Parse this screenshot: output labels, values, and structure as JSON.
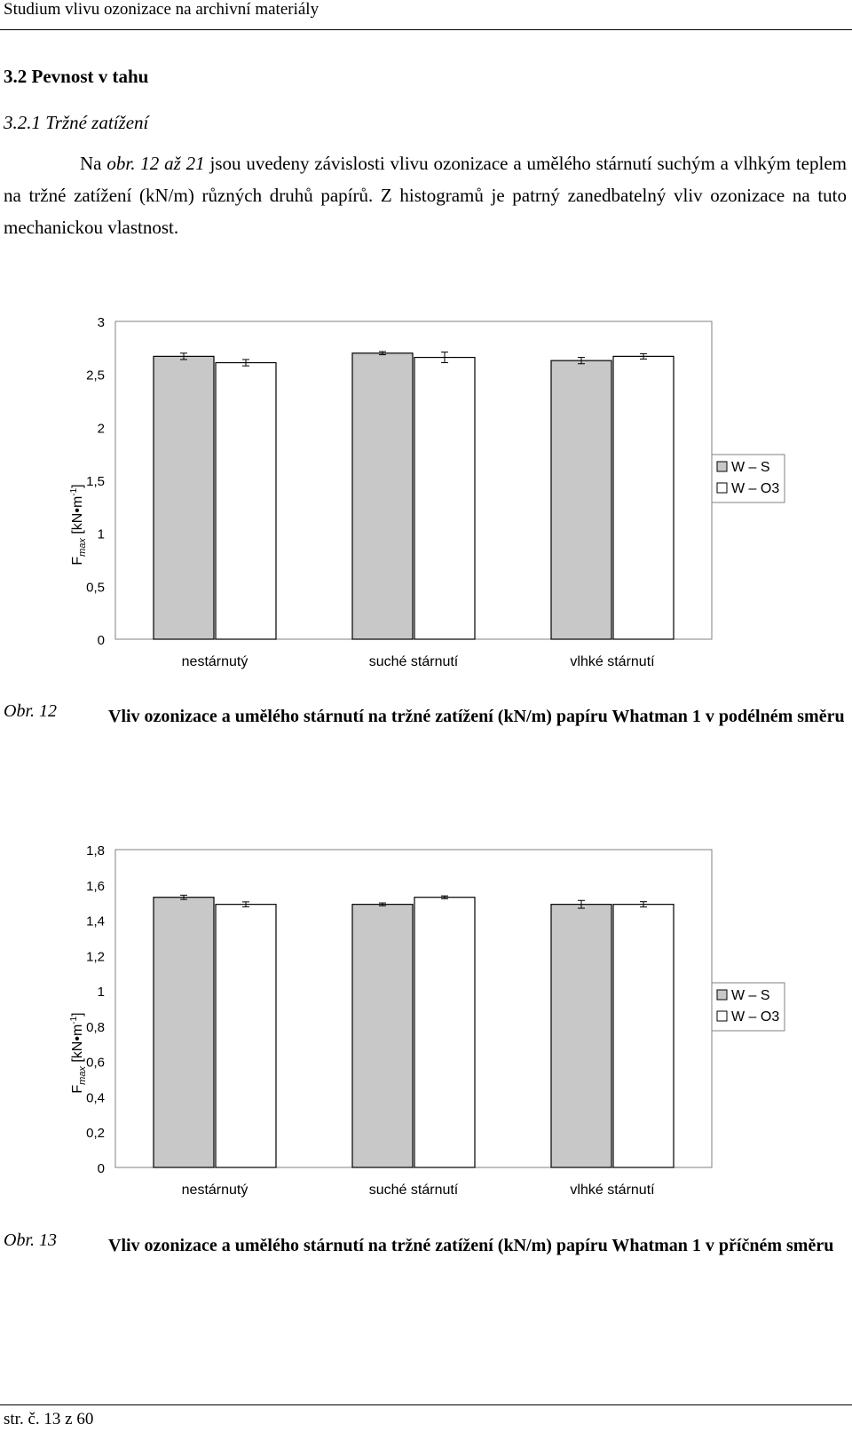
{
  "header": {
    "title": "Studium vlivu ozonizace na archivní materiály"
  },
  "section": {
    "heading": "3.2 Pevnost v tahu",
    "subheading": "3.2.1 Tržné zatížení",
    "paragraph_prefix": "Na ",
    "paragraph_italic": "obr. 12 až 21",
    "paragraph_rest": " jsou uvedeny závislosti vlivu ozonizace a umělého stárnutí suchým a vlhkým teplem na tržné zatížení (kN/m) různých druhů papírů. Z histogramů je patrný zanedbatelný vliv ozonizace na tuto mechanickou vlastnost."
  },
  "figures": [
    {
      "caption_num": "Obr. 12",
      "caption_text": "Vliv ozonizace a umělého stárnutí na tržné zatížení (kN/m) papíru Whatman 1 v podélném směru"
    },
    {
      "caption_num": "Obr. 13",
      "caption_text": "Vliv ozonizace a umělého stárnutí na tržné zatížení (kN/m) papíru Whatman 1 v příčném směru"
    }
  ],
  "ylabel": {
    "main": "F",
    "sub": "max",
    "unit_open": " [kN•m",
    "sup": "-1",
    "unit_close": "]"
  },
  "colors": {
    "ws": "#c8c8c8",
    "wo3": "#ffffff",
    "stroke": "#000000",
    "frame": "#808080"
  },
  "chart_data": [
    {
      "type": "bar",
      "categories": [
        "nestárnutý",
        "suché stárnutí",
        "vlhké stárnutí"
      ],
      "series": [
        {
          "name": "W – S",
          "values": [
            2.67,
            2.7,
            2.63
          ],
          "errors": [
            0.03,
            0.015,
            0.03
          ]
        },
        {
          "name": "W – O3",
          "values": [
            2.61,
            2.66,
            2.67
          ],
          "errors": [
            0.03,
            0.05,
            0.025
          ]
        }
      ],
      "ylim": [
        0,
        3
      ],
      "yticks": [
        0,
        0.5,
        1,
        1.5,
        2,
        2.5,
        3
      ],
      "ytick_labels": [
        "0",
        "0,5",
        "1",
        "1,5",
        "2",
        "2,5",
        "3"
      ],
      "legend": "right",
      "grid": false
    },
    {
      "type": "bar",
      "categories": [
        "nestárnutý",
        "suché stárnutí",
        "vlhké stárnutí"
      ],
      "series": [
        {
          "name": "W – S",
          "values": [
            1.53,
            1.49,
            1.49
          ],
          "errors": [
            0.012,
            0.008,
            0.022
          ]
        },
        {
          "name": "W – O3",
          "values": [
            1.49,
            1.53,
            1.49
          ],
          "errors": [
            0.014,
            0.008,
            0.015
          ]
        }
      ],
      "ylim": [
        0,
        1.8
      ],
      "yticks": [
        0,
        0.2,
        0.4,
        0.6,
        0.8,
        1,
        1.2,
        1.4,
        1.6,
        1.8
      ],
      "ytick_labels": [
        "0",
        "0,2",
        "0,4",
        "0,6",
        "0,8",
        "1",
        "1,2",
        "1,4",
        "1,6",
        "1,8"
      ],
      "legend": "right",
      "grid": false
    }
  ],
  "footer": {
    "page": "str. č. 13 z 60"
  }
}
